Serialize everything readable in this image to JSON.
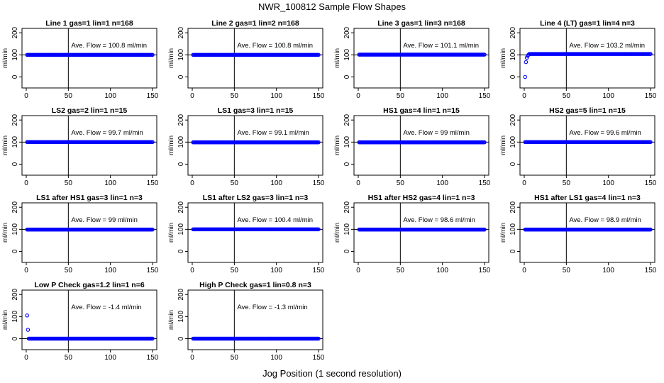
{
  "figure": {
    "title": "NWR_100812  Sample Flow Shapes",
    "xlabel": "Jog Position (1 second resolution)"
  },
  "colors": {
    "points": "#0000ff",
    "axes": "#000000"
  },
  "chart_data": [
    {
      "type": "scatter",
      "title": "Line 1 gas=1 lin=1 n=168",
      "ylabel": "ml/min",
      "xlim": [
        0,
        150
      ],
      "ylim": [
        -50,
        220
      ],
      "xticks": [
        0,
        50,
        100,
        150
      ],
      "yticks": [
        0,
        100,
        200
      ],
      "vline_x": 50,
      "hline_y": 100,
      "annotation": "Ave. Flow =  100.8  ml/min",
      "series": [
        {
          "name": "flow",
          "x_range": [
            1,
            150
          ],
          "value": 100
        }
      ]
    },
    {
      "type": "scatter",
      "title": "Line 2 gas=1 lin=2 n=168",
      "ylabel": "ml/min",
      "xlim": [
        0,
        150
      ],
      "ylim": [
        -50,
        220
      ],
      "xticks": [
        0,
        50,
        100,
        150
      ],
      "yticks": [
        0,
        100,
        200
      ],
      "vline_x": 50,
      "hline_y": 100,
      "annotation": "Ave. Flow =  100.8  ml/min",
      "series": [
        {
          "name": "flow",
          "x_range": [
            1,
            150
          ],
          "value": 100
        }
      ]
    },
    {
      "type": "scatter",
      "title": "Line 3 gas=1 lin=3 n=168",
      "ylabel": "ml/min",
      "xlim": [
        0,
        150
      ],
      "ylim": [
        -50,
        220
      ],
      "xticks": [
        0,
        50,
        100,
        150
      ],
      "yticks": [
        0,
        100,
        200
      ],
      "vline_x": 50,
      "hline_y": 100,
      "annotation": "Ave. Flow =  101.1  ml/min",
      "series": [
        {
          "name": "flow",
          "x_range": [
            1,
            150
          ],
          "value": 101
        }
      ]
    },
    {
      "type": "scatter",
      "title": "Line 4 (LT) gas=1 lin=4 n=3",
      "ylabel": "ml/min",
      "xlim": [
        0,
        150
      ],
      "ylim": [
        -50,
        220
      ],
      "xticks": [
        0,
        50,
        100,
        150
      ],
      "yticks": [
        0,
        100,
        200
      ],
      "vline_x": 50,
      "hline_y": 100,
      "annotation": "Ave. Flow =  103.2  ml/min",
      "series": [
        {
          "name": "flow",
          "x_range": [
            6,
            150
          ],
          "value": 104,
          "extra_points": [
            [
              1,
              0
            ],
            [
              2,
              67
            ],
            [
              3,
              87
            ],
            [
              4,
              95
            ],
            [
              5,
              100
            ]
          ]
        }
      ]
    },
    {
      "type": "scatter",
      "title": "LS2 gas=2 lin=1 n=15",
      "ylabel": "ml/min",
      "xlim": [
        0,
        150
      ],
      "ylim": [
        -50,
        220
      ],
      "xticks": [
        0,
        50,
        100,
        150
      ],
      "yticks": [
        0,
        100,
        200
      ],
      "vline_x": 50,
      "hline_y": 100,
      "annotation": "Ave. Flow =  99.7  ml/min",
      "series": [
        {
          "name": "flow",
          "x_range": [
            1,
            150
          ],
          "value": 100
        }
      ]
    },
    {
      "type": "scatter",
      "title": "LS1 gas=3 lin=1 n=15",
      "ylabel": "ml/min",
      "xlim": [
        0,
        150
      ],
      "ylim": [
        -50,
        220
      ],
      "xticks": [
        0,
        50,
        100,
        150
      ],
      "yticks": [
        0,
        100,
        200
      ],
      "vline_x": 50,
      "hline_y": 100,
      "annotation": "Ave. Flow =  99.1  ml/min",
      "series": [
        {
          "name": "flow",
          "x_range": [
            1,
            150
          ],
          "value": 99
        }
      ]
    },
    {
      "type": "scatter",
      "title": "HS1 gas=4 lin=1 n=15",
      "ylabel": "ml/min",
      "xlim": [
        0,
        150
      ],
      "ylim": [
        -50,
        220
      ],
      "xticks": [
        0,
        50,
        100,
        150
      ],
      "yticks": [
        0,
        100,
        200
      ],
      "vline_x": 50,
      "hline_y": 100,
      "annotation": "Ave. Flow =  99  ml/min",
      "series": [
        {
          "name": "flow",
          "x_range": [
            1,
            150
          ],
          "value": 99
        }
      ]
    },
    {
      "type": "scatter",
      "title": "HS2 gas=5 lin=1 n=15",
      "ylabel": "ml/min",
      "xlim": [
        0,
        150
      ],
      "ylim": [
        -50,
        220
      ],
      "xticks": [
        0,
        50,
        100,
        150
      ],
      "yticks": [
        0,
        100,
        200
      ],
      "vline_x": 50,
      "hline_y": 100,
      "annotation": "Ave. Flow =  99.6  ml/min",
      "series": [
        {
          "name": "flow",
          "x_range": [
            1,
            150
          ],
          "value": 100
        }
      ]
    },
    {
      "type": "scatter",
      "title": "LS1 after HS1 gas=3 lin=1 n=3",
      "ylabel": "ml/min",
      "xlim": [
        0,
        150
      ],
      "ylim": [
        -50,
        220
      ],
      "xticks": [
        0,
        50,
        100,
        150
      ],
      "yticks": [
        0,
        100,
        200
      ],
      "vline_x": 50,
      "hline_y": 100,
      "annotation": "Ave. Flow =  99  ml/min",
      "series": [
        {
          "name": "flow",
          "x_range": [
            1,
            150
          ],
          "value": 99
        }
      ]
    },
    {
      "type": "scatter",
      "title": "LS1 after LS2 gas=3 lin=1 n=3",
      "ylabel": "ml/min",
      "xlim": [
        0,
        150
      ],
      "ylim": [
        -50,
        220
      ],
      "xticks": [
        0,
        50,
        100,
        150
      ],
      "yticks": [
        0,
        100,
        200
      ],
      "vline_x": 50,
      "hline_y": 100,
      "annotation": "Ave. Flow =  100.4  ml/min",
      "series": [
        {
          "name": "flow",
          "x_range": [
            1,
            150
          ],
          "value": 100
        }
      ]
    },
    {
      "type": "scatter",
      "title": "HS1 after HS2 gas=4 lin=1 n=3",
      "ylabel": "ml/min",
      "xlim": [
        0,
        150
      ],
      "ylim": [
        -50,
        220
      ],
      "xticks": [
        0,
        50,
        100,
        150
      ],
      "yticks": [
        0,
        100,
        200
      ],
      "vline_x": 50,
      "hline_y": 100,
      "annotation": "Ave. Flow =  98.6  ml/min",
      "series": [
        {
          "name": "flow",
          "x_range": [
            1,
            150
          ],
          "value": 99
        }
      ]
    },
    {
      "type": "scatter",
      "title": "HS1 after LS1 gas=4 lin=1 n=3",
      "ylabel": "ml/min",
      "xlim": [
        0,
        150
      ],
      "ylim": [
        -50,
        220
      ],
      "xticks": [
        0,
        50,
        100,
        150
      ],
      "yticks": [
        0,
        100,
        200
      ],
      "vline_x": 50,
      "hline_y": 100,
      "annotation": "Ave. Flow =  98.9  ml/min",
      "series": [
        {
          "name": "flow",
          "x_range": [
            1,
            150
          ],
          "value": 99
        }
      ]
    },
    {
      "type": "scatter",
      "title": "Low P Check gas=1.2 lin=1 n=6",
      "ylabel": "ml/min",
      "xlim": [
        0,
        150
      ],
      "ylim": [
        -50,
        220
      ],
      "xticks": [
        0,
        50,
        100,
        150
      ],
      "yticks": [
        0,
        100,
        200
      ],
      "vline_x": 50,
      "hline_y": 0,
      "annotation": "Ave. Flow =  -1.4  ml/min",
      "series": [
        {
          "name": "flow",
          "x_range": [
            3,
            150
          ],
          "value": 0,
          "extra_points": [
            [
              1,
              105
            ],
            [
              2,
              40
            ]
          ]
        }
      ]
    },
    {
      "type": "scatter",
      "title": "High P Check gas=1 lin=0.8 n=3",
      "ylabel": "ml/min",
      "xlim": [
        0,
        150
      ],
      "ylim": [
        -50,
        220
      ],
      "xticks": [
        0,
        50,
        100,
        150
      ],
      "yticks": [
        0,
        100,
        200
      ],
      "vline_x": 50,
      "hline_y": 0,
      "annotation": "Ave. Flow =  -1.3  ml/min",
      "series": [
        {
          "name": "flow",
          "x_range": [
            1,
            150
          ],
          "value": 0
        }
      ]
    }
  ]
}
